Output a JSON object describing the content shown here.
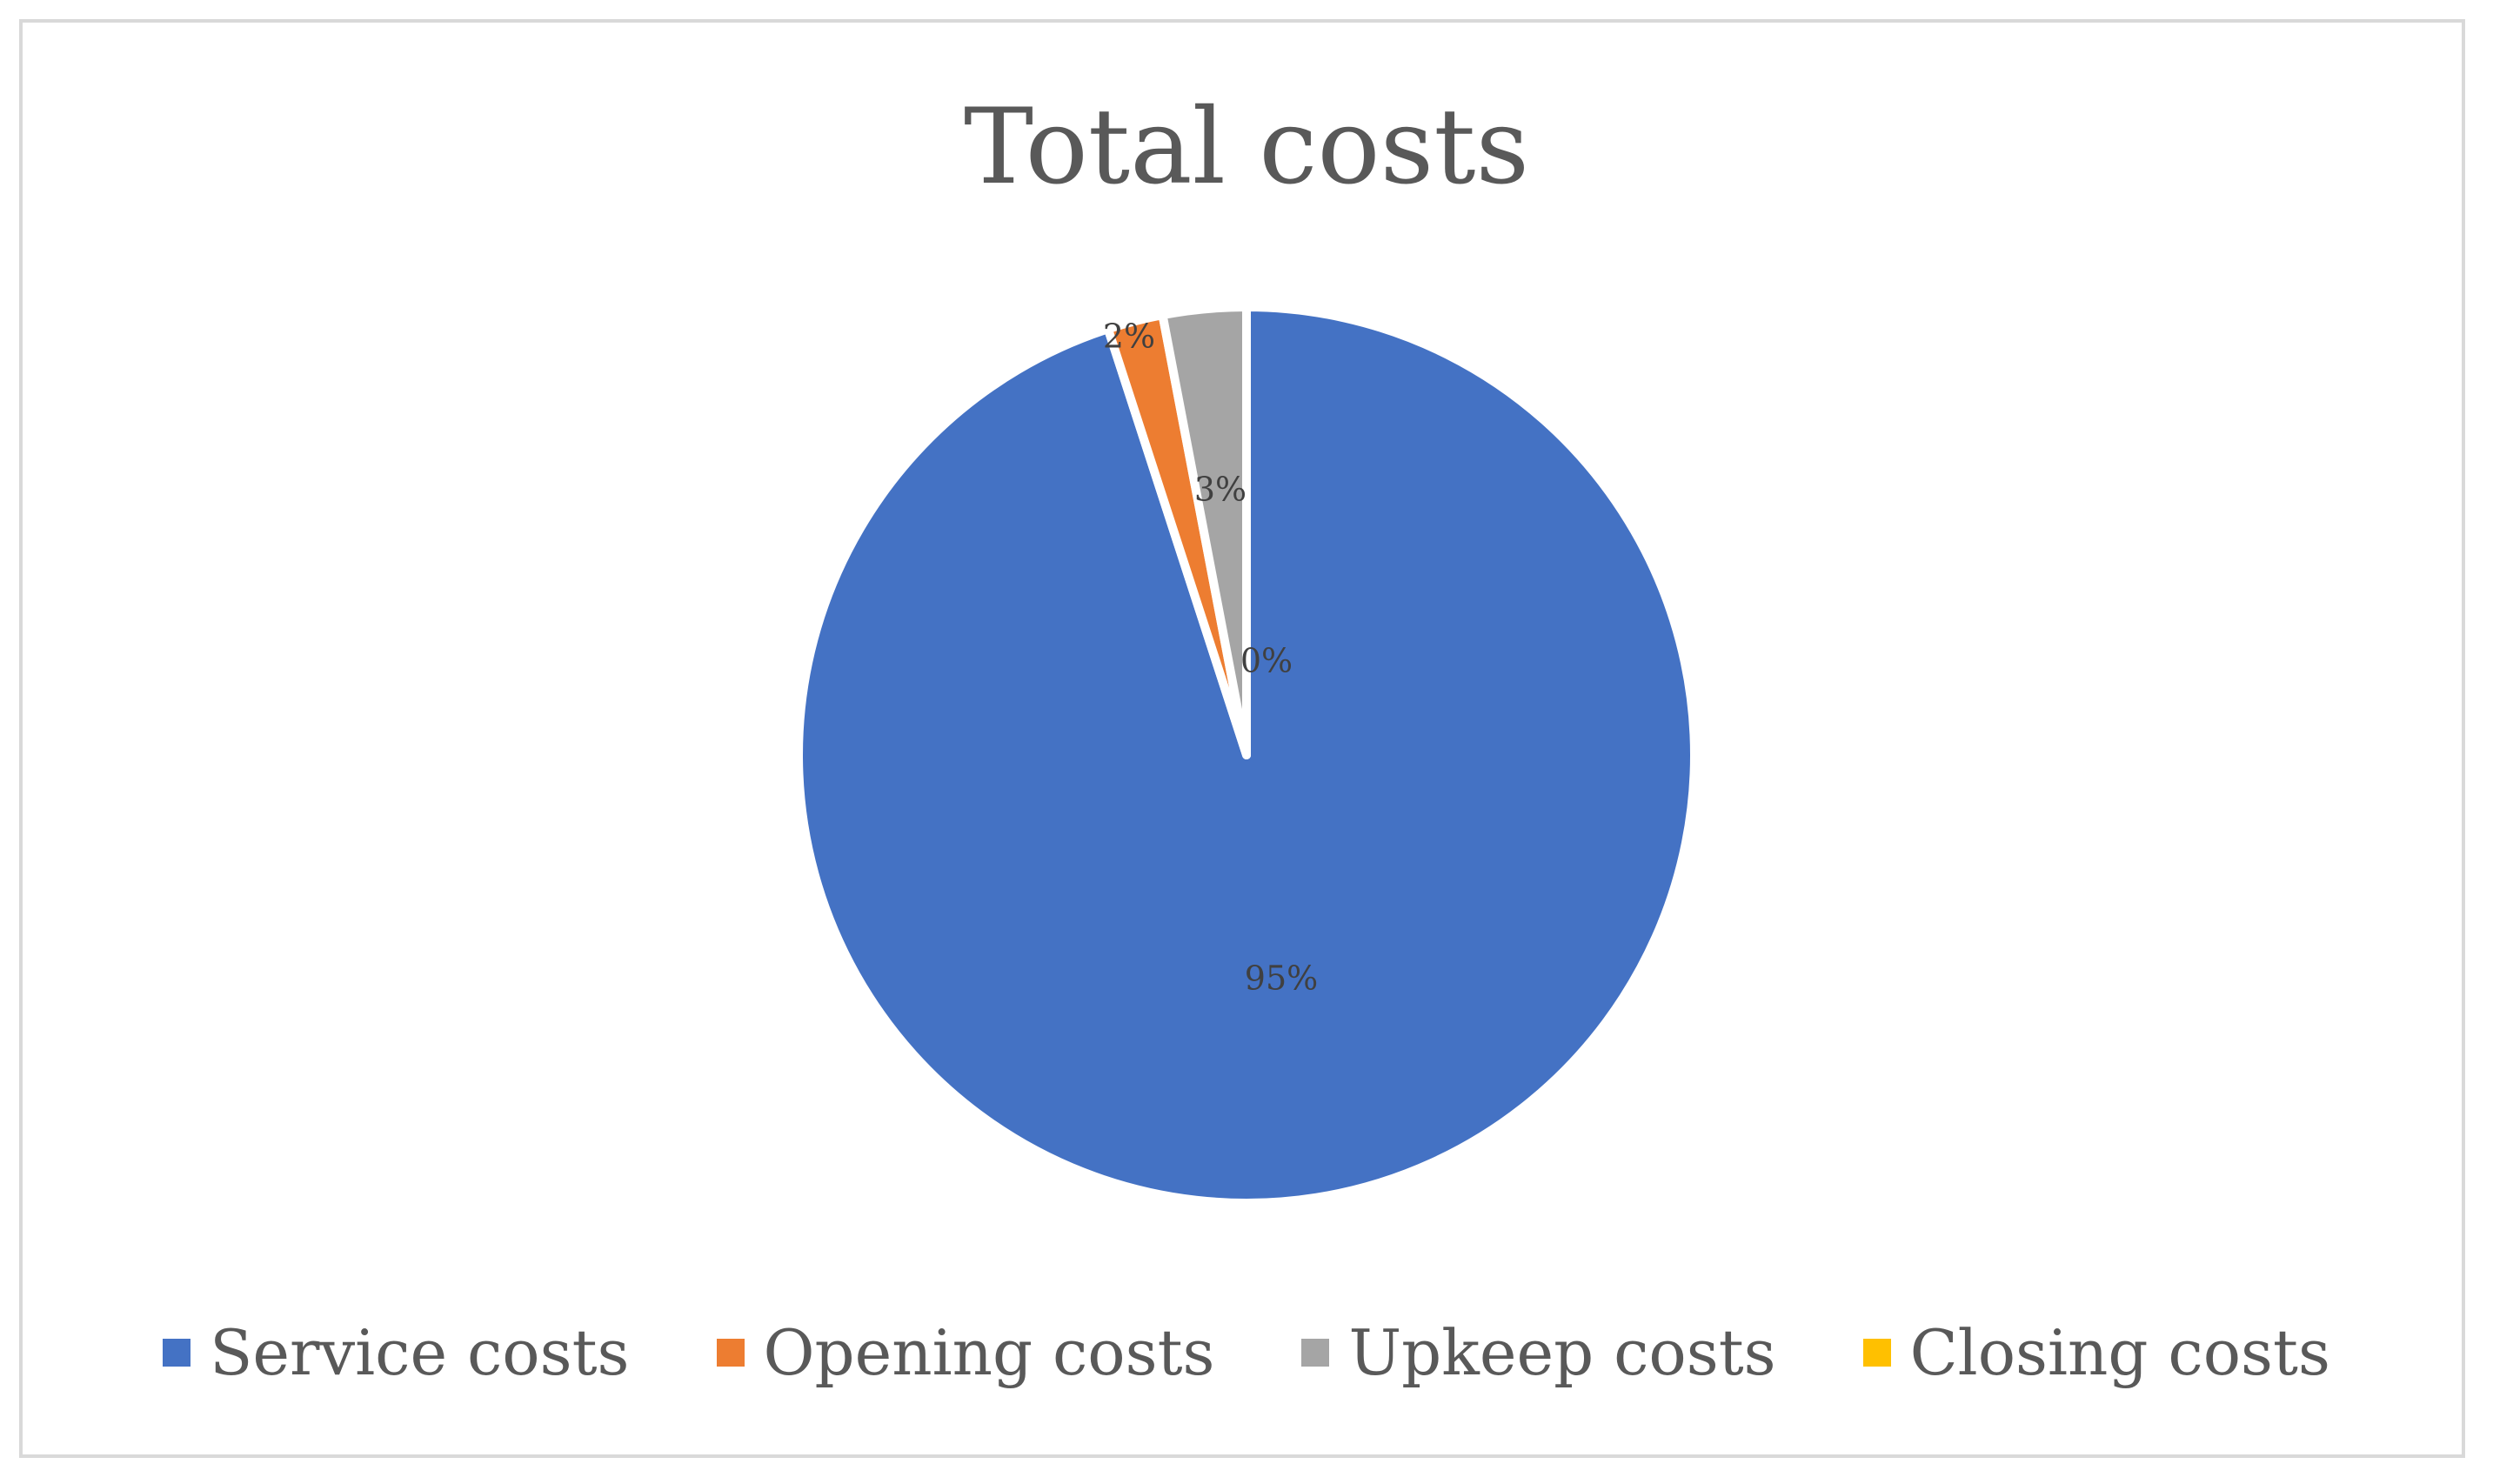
{
  "chart_data": {
    "type": "pie",
    "title": "Total costs",
    "legend_position": "bottom",
    "slices": [
      {
        "name": "Service costs",
        "value": 95,
        "label": "95%",
        "color": "#4472c4"
      },
      {
        "name": "Opening costs",
        "value": 2,
        "label": "2%",
        "color": "#ed7d31"
      },
      {
        "name": "Upkeep costs",
        "value": 3,
        "label": "3%",
        "color": "#a5a5a5"
      },
      {
        "name": "Closing costs",
        "value": 0,
        "label": "0%",
        "color": "#ffc000"
      }
    ]
  }
}
